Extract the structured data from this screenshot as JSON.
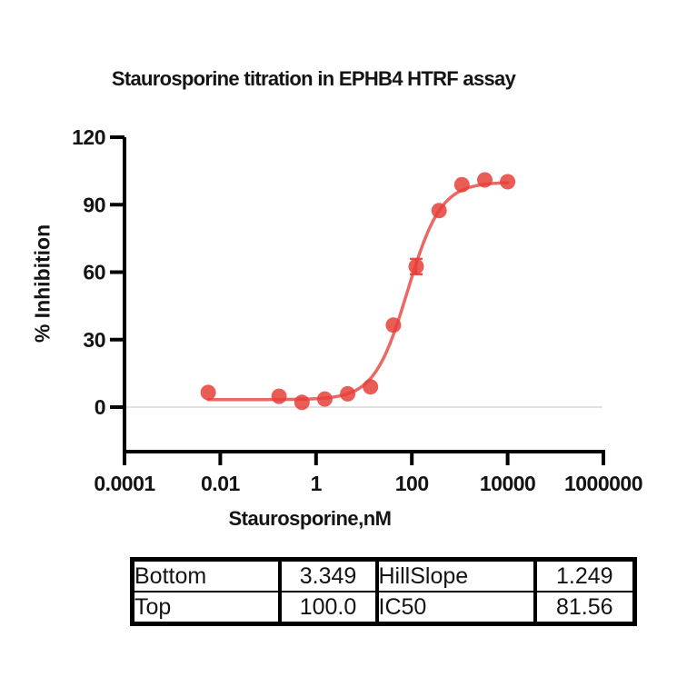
{
  "chart": {
    "title": "Staurosporine titration in EPHB4 HTRF assay",
    "xlabel": "Staurosporine,nM",
    "ylabel": "% Inhibition"
  },
  "chart_data": {
    "type": "scatter",
    "title": "Staurosporine titration in EPHB4 HTRF assay",
    "xlabel": "Staurosporine,nM",
    "ylabel": "% Inhibition",
    "x_scale": "log",
    "xlim": [
      0.0001,
      1000000
    ],
    "ylim": [
      -20,
      120
    ],
    "grid": false,
    "legend_position": "none",
    "x_ticks": [
      0.0001,
      0.01,
      1,
      100,
      10000,
      1000000
    ],
    "x_tick_labels": [
      "0.0001",
      "0.01",
      "1",
      "100",
      "10000",
      "1000000"
    ],
    "y_ticks": [
      0,
      30,
      60,
      90,
      120
    ],
    "x": [
      0.0056,
      0.169,
      0.508,
      1.52,
      4.57,
      13.7,
      41.2,
      123.5,
      370.4,
      1111,
      3333,
      10000
    ],
    "y": [
      6.5,
      4.8,
      2.1,
      3.6,
      5.9,
      9.0,
      36.5,
      62.5,
      87.4,
      98.9,
      101.0,
      100.2
    ],
    "error_bars": [
      {
        "x": 123.5,
        "y": 62.5,
        "plus": 3.4,
        "minus": 3.4
      }
    ],
    "fit": {
      "model": "4PL dose-response",
      "bottom": 3.349,
      "top": 100.0,
      "hillslope": 1.249,
      "ic50": 81.56
    },
    "series_color": "#e63f38",
    "marker_opacity": 0.85,
    "curve_opacity": 0.78,
    "zero_line_color": "#e2e2e2"
  },
  "results_table": {
    "rows": [
      [
        "Bottom",
        "3.349",
        "HillSlope",
        "1.249"
      ],
      [
        "Top",
        "100.0",
        "IC50",
        "81.56"
      ]
    ]
  }
}
